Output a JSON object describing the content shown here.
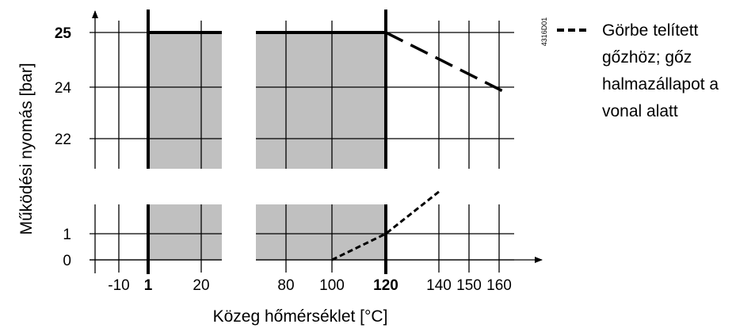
{
  "chart_data": {
    "type": "area",
    "title": "",
    "drawing_code": "4316D01",
    "xlabel": "Közeg hőmérséklet [°C]",
    "ylabel": "Működési nyomás [bar]",
    "x_axis": {
      "broken": true,
      "segments": [
        {
          "range": [
            -20,
            28
          ],
          "ticks": [
            {
              "value": -10,
              "label": "-10",
              "bold": false
            },
            {
              "value": 1,
              "label": "1",
              "bold": true
            },
            {
              "value": 20,
              "label": "20",
              "bold": false
            }
          ]
        },
        {
          "range": [
            70,
            165
          ],
          "ticks": [
            {
              "value": 80,
              "label": "80",
              "bold": false
            },
            {
              "value": 100,
              "label": "100",
              "bold": false
            },
            {
              "value": 120,
              "label": "120",
              "bold": true
            },
            {
              "value": 140,
              "label": "140",
              "bold": false
            },
            {
              "value": 150,
              "label": "150",
              "bold": false
            },
            {
              "value": 160,
              "label": "160",
              "bold": false
            }
          ]
        }
      ]
    },
    "y_axis": {
      "broken": true,
      "ticks": [
        {
          "value": 0,
          "label": "0",
          "bold": false
        },
        {
          "value": 1,
          "label": "1",
          "bold": false
        },
        {
          "value": 22,
          "label": "22",
          "bold": false
        },
        {
          "value": 24,
          "label": "24",
          "bold": false
        },
        {
          "value": 25,
          "label": "25",
          "bold": true
        }
      ]
    },
    "grid": true,
    "shaded_region": {
      "x_range": [
        1,
        120
      ],
      "y_range": [
        0,
        25
      ],
      "color": "#c0c0c0"
    },
    "boundary_lines": [
      {
        "name": "max-pressure",
        "style": "solid",
        "points": [
          [
            1,
            25
          ],
          [
            120,
            25
          ]
        ]
      },
      {
        "name": "max-temperature",
        "style": "solid",
        "points": [
          [
            120,
            0
          ],
          [
            120,
            25
          ]
        ]
      },
      {
        "name": "min-temperature",
        "style": "solid",
        "points": [
          [
            1,
            0
          ],
          [
            1,
            25
          ]
        ]
      }
    ],
    "series": [
      {
        "style": "long-dash",
        "points": [
          [
            120,
            25
          ],
          [
            162,
            23.8
          ]
        ]
      },
      {
        "style": "short-dash",
        "points": [
          [
            100,
            0
          ],
          [
            120,
            1
          ],
          [
            140,
            2.6
          ]
        ]
      }
    ],
    "legend": {
      "placement": "right",
      "entries": [
        {
          "style": "short-dash",
          "lines": [
            "Görbe telített",
            "gőzhöz; gőz",
            "halmazállapot a",
            "vonal alatt"
          ]
        }
      ]
    }
  }
}
